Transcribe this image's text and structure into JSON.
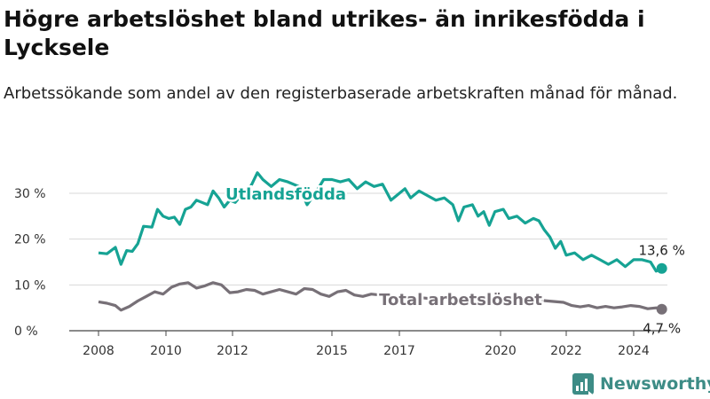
{
  "title": "Högre arbetslöshet bland utrikes- än inrikesfödda i Lycksele",
  "subtitle": "Arbetssökande som andel av den registerbaserade arbetskraften månad för månad.",
  "brand": {
    "name": "Newsworthy",
    "icon": "bar-chart-logo-icon",
    "color": "#3d8c86"
  },
  "chart_data": {
    "type": "line",
    "x_ticks": [
      "2008",
      "2010",
      "2012",
      "2015",
      "2017",
      "2020",
      "2022",
      "2024"
    ],
    "y_ticks": [
      "0 %",
      "10 %",
      "20 %",
      "30 %"
    ],
    "ylim": [
      0,
      30
    ],
    "grid": "horizontal",
    "series": [
      {
        "name": "Utlandsfödda",
        "color": "#16a394",
        "end_label": "13,6 %",
        "points": [
          [
            "2008-01",
            17.0
          ],
          [
            "2008-04",
            16.8
          ],
          [
            "2008-07",
            18.2
          ],
          [
            "2008-09",
            14.5
          ],
          [
            "2008-11",
            17.5
          ],
          [
            "2009-01",
            17.3
          ],
          [
            "2009-03",
            19.0
          ],
          [
            "2009-05",
            22.8
          ],
          [
            "2009-08",
            22.6
          ],
          [
            "2009-10",
            26.5
          ],
          [
            "2009-12",
            25.0
          ],
          [
            "2010-02",
            24.5
          ],
          [
            "2010-04",
            24.8
          ],
          [
            "2010-06",
            23.2
          ],
          [
            "2010-08",
            26.5
          ],
          [
            "2010-10",
            27.0
          ],
          [
            "2010-12",
            28.5
          ],
          [
            "2011-02",
            28.0
          ],
          [
            "2011-04",
            27.5
          ],
          [
            "2011-06",
            30.5
          ],
          [
            "2011-08",
            29.0
          ],
          [
            "2011-10",
            27.0
          ],
          [
            "2011-12",
            28.5
          ],
          [
            "2012-02",
            28.0
          ],
          [
            "2012-04",
            29.5
          ],
          [
            "2012-06",
            30.0
          ],
          [
            "2012-08",
            32.0
          ],
          [
            "2012-10",
            34.5
          ],
          [
            "2012-12",
            33.0
          ],
          [
            "2013-03",
            31.5
          ],
          [
            "2013-06",
            33.0
          ],
          [
            "2013-09",
            32.5
          ],
          [
            "2014-01",
            31.5
          ],
          [
            "2014-04",
            27.5
          ],
          [
            "2014-07",
            30.0
          ],
          [
            "2014-10",
            33.0
          ],
          [
            "2015-01",
            33.0
          ],
          [
            "2015-04",
            32.5
          ],
          [
            "2015-07",
            33.0
          ],
          [
            "2015-10",
            31.0
          ],
          [
            "2016-01",
            32.5
          ],
          [
            "2016-04",
            31.5
          ],
          [
            "2016-07",
            32.0
          ],
          [
            "2016-10",
            28.5
          ],
          [
            "2016-12",
            29.5
          ],
          [
            "2017-03",
            31.0
          ],
          [
            "2017-05",
            29.0
          ],
          [
            "2017-08",
            30.5
          ],
          [
            "2017-11",
            29.5
          ],
          [
            "2018-02",
            28.5
          ],
          [
            "2018-05",
            29.0
          ],
          [
            "2018-08",
            27.5
          ],
          [
            "2018-10",
            24.0
          ],
          [
            "2018-12",
            27.0
          ],
          [
            "2019-03",
            27.5
          ],
          [
            "2019-05",
            25.0
          ],
          [
            "2019-07",
            26.0
          ],
          [
            "2019-09",
            23.0
          ],
          [
            "2019-11",
            26.0
          ],
          [
            "2020-02",
            26.5
          ],
          [
            "2020-04",
            24.5
          ],
          [
            "2020-07",
            25.0
          ],
          [
            "2020-10",
            23.5
          ],
          [
            "2021-01",
            24.5
          ],
          [
            "2021-03",
            24.0
          ],
          [
            "2021-05",
            22.0
          ],
          [
            "2021-07",
            20.5
          ],
          [
            "2021-09",
            18.0
          ],
          [
            "2021-11",
            19.5
          ],
          [
            "2022-01",
            16.5
          ],
          [
            "2022-04",
            17.0
          ],
          [
            "2022-07",
            15.5
          ],
          [
            "2022-10",
            16.5
          ],
          [
            "2023-01",
            15.5
          ],
          [
            "2023-04",
            14.5
          ],
          [
            "2023-07",
            15.5
          ],
          [
            "2023-10",
            14.0
          ],
          [
            "2024-01",
            15.5
          ],
          [
            "2024-04",
            15.5
          ],
          [
            "2024-07",
            15.0
          ],
          [
            "2024-09",
            13.0
          ],
          [
            "2024-11",
            13.6
          ]
        ]
      },
      {
        "name": "Total arbetslöshet",
        "color": "#777077",
        "end_label": "4,7 %",
        "points": [
          [
            "2008-01",
            6.3
          ],
          [
            "2008-04",
            6.0
          ],
          [
            "2008-07",
            5.5
          ],
          [
            "2008-09",
            4.5
          ],
          [
            "2008-12",
            5.3
          ],
          [
            "2009-03",
            6.5
          ],
          [
            "2009-06",
            7.5
          ],
          [
            "2009-09",
            8.5
          ],
          [
            "2009-12",
            8.0
          ],
          [
            "2010-03",
            9.5
          ],
          [
            "2010-06",
            10.2
          ],
          [
            "2010-09",
            10.5
          ],
          [
            "2010-12",
            9.3
          ],
          [
            "2011-03",
            9.8
          ],
          [
            "2011-06",
            10.5
          ],
          [
            "2011-09",
            10.0
          ],
          [
            "2011-12",
            8.3
          ],
          [
            "2012-03",
            8.5
          ],
          [
            "2012-06",
            9.0
          ],
          [
            "2012-09",
            8.8
          ],
          [
            "2012-12",
            8.0
          ],
          [
            "2013-03",
            8.5
          ],
          [
            "2013-06",
            9.0
          ],
          [
            "2013-09",
            8.5
          ],
          [
            "2013-12",
            8.0
          ],
          [
            "2014-03",
            9.2
          ],
          [
            "2014-06",
            9.0
          ],
          [
            "2014-09",
            8.0
          ],
          [
            "2014-12",
            7.5
          ],
          [
            "2015-03",
            8.5
          ],
          [
            "2015-06",
            8.8
          ],
          [
            "2015-09",
            7.8
          ],
          [
            "2015-12",
            7.5
          ],
          [
            "2016-03",
            8.0
          ],
          [
            "2016-06",
            7.8
          ],
          [
            "2016-09",
            6.5
          ],
          [
            "2016-12",
            6.8
          ],
          [
            "2017-03",
            7.5
          ],
          [
            "2017-06",
            7.0
          ],
          [
            "2017-09",
            7.2
          ],
          [
            "2017-12",
            7.0
          ],
          [
            "2018-06",
            7.0
          ],
          [
            "2019-01",
            6.8
          ],
          [
            "2019-06",
            6.9
          ],
          [
            "2020-01",
            6.8
          ],
          [
            "2020-06",
            7.0
          ],
          [
            "2021-01",
            6.8
          ],
          [
            "2021-06",
            6.5
          ],
          [
            "2021-12",
            6.2
          ],
          [
            "2022-03",
            5.5
          ],
          [
            "2022-06",
            5.2
          ],
          [
            "2022-09",
            5.5
          ],
          [
            "2022-12",
            5.0
          ],
          [
            "2023-03",
            5.3
          ],
          [
            "2023-06",
            5.0
          ],
          [
            "2023-09",
            5.2
          ],
          [
            "2023-12",
            5.5
          ],
          [
            "2024-03",
            5.3
          ],
          [
            "2024-06",
            4.8
          ],
          [
            "2024-09",
            5.0
          ],
          [
            "2024-11",
            4.7
          ]
        ]
      }
    ]
  }
}
